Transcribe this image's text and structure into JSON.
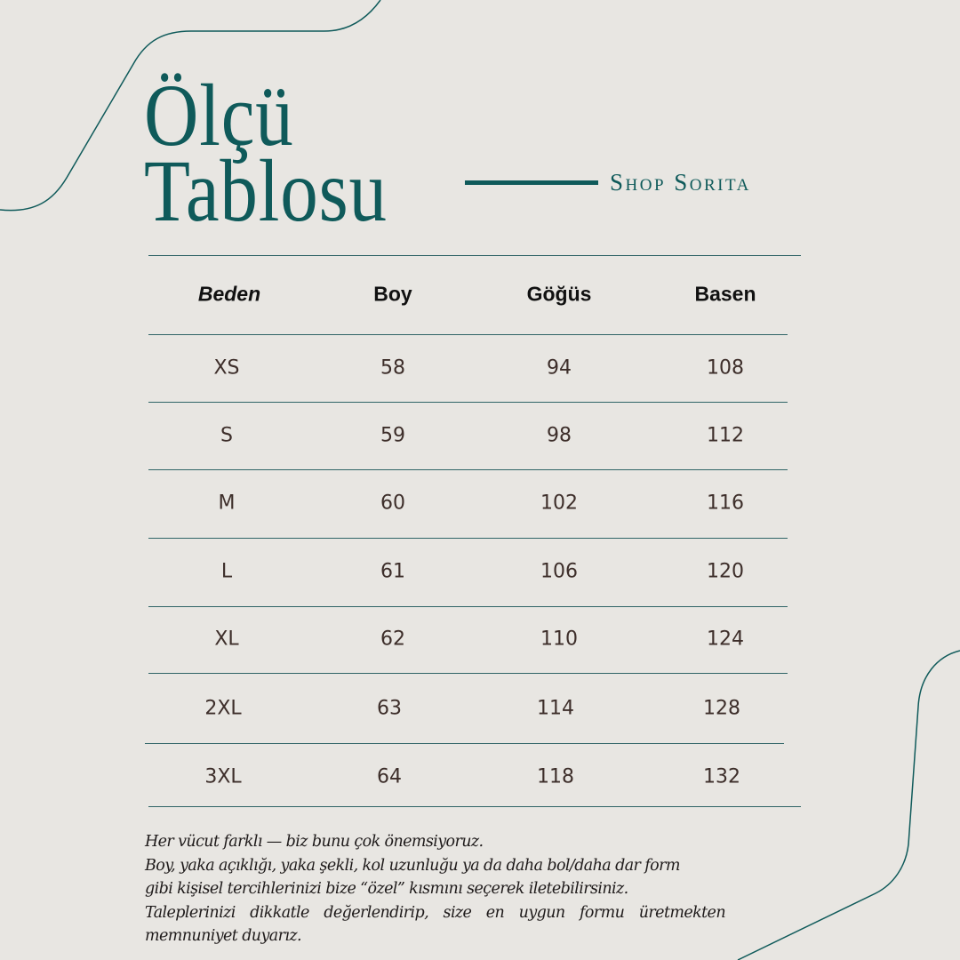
{
  "title": {
    "line1": "Ölçü",
    "line2": "Tablosu"
  },
  "brand": "Shop Sorita",
  "colors": {
    "background": "#e8e6e2",
    "accent": "#0f5a5a",
    "text": "#3d2e2a"
  },
  "table": {
    "headers": [
      "Beden",
      "Boy",
      "Göğüs",
      "Basen"
    ],
    "rows": [
      [
        "XS",
        "58",
        "94",
        "108"
      ],
      [
        "S",
        "59",
        "98",
        "112"
      ],
      [
        "M",
        "60",
        "102",
        "116"
      ],
      [
        "L",
        "61",
        "106",
        "120"
      ],
      [
        "XL",
        "62",
        "110",
        "124"
      ],
      [
        "2XL",
        "63",
        "114",
        "128"
      ],
      [
        "3XL",
        "64",
        "118",
        "132"
      ]
    ]
  },
  "note": [
    "Her vücut farklı — biz bunu çok önemsiyoruz.",
    "Boy, yaka açıklığı, yaka şekli, kol uzunluğu ya da daha bol/daha dar form",
    "gibi kişisel tercihlerinizi bize “özel” kısmını seçerek iletebilirsiniz.",
    "Taleplerinizi dikkatle değerlendirip, size en uygun formu üretmekten",
    "memnuniyet duyarız."
  ]
}
